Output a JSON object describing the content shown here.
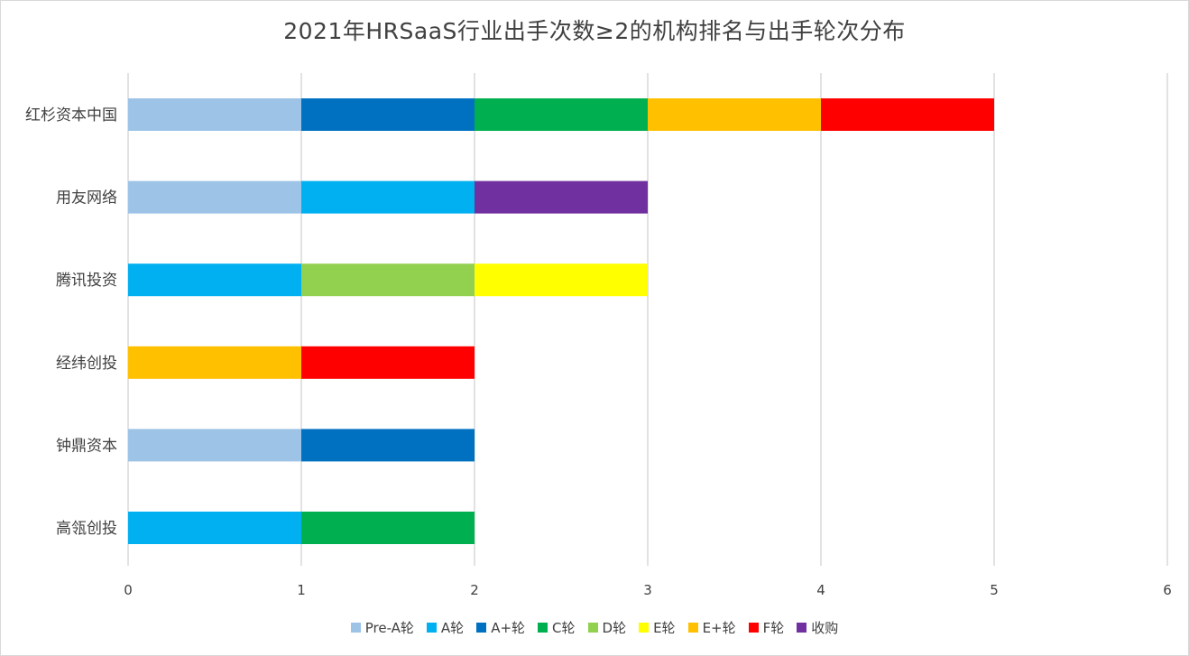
{
  "chart_data": {
    "type": "bar",
    "orientation": "horizontal",
    "stacked": true,
    "title": "2021年HRSaaS行业出手次数≥2的机构排名与出手轮次分布",
    "xlabel": "",
    "ylabel": "",
    "xlim": [
      0,
      6
    ],
    "xticks": [
      "0",
      "1",
      "2",
      "3",
      "4",
      "5",
      "6"
    ],
    "grid": "vertical",
    "legend_position": "bottom",
    "categories": [
      "红杉资本中国",
      "用友网络",
      "腾讯投资",
      "经纬创投",
      "钟鼎资本",
      "高瓴创投"
    ],
    "series": [
      {
        "name": "Pre-A轮",
        "color": "#9dc3e6",
        "values": [
          1,
          1,
          0,
          0,
          1,
          0
        ]
      },
      {
        "name": "A轮",
        "color": "#00b0f0",
        "values": [
          0,
          1,
          1,
          0,
          0,
          1
        ]
      },
      {
        "name": "A+轮",
        "color": "#0070c0",
        "values": [
          1,
          0,
          0,
          0,
          1,
          0
        ]
      },
      {
        "name": "C轮",
        "color": "#00b050",
        "values": [
          1,
          0,
          0,
          0,
          0,
          1
        ]
      },
      {
        "name": "D轮",
        "color": "#92d050",
        "values": [
          0,
          0,
          1,
          0,
          0,
          0
        ]
      },
      {
        "name": "E轮",
        "color": "#ffff00",
        "values": [
          0,
          0,
          1,
          0,
          0,
          0
        ]
      },
      {
        "name": "E+轮",
        "color": "#ffc000",
        "values": [
          1,
          0,
          0,
          1,
          0,
          0
        ]
      },
      {
        "name": "F轮",
        "color": "#ff0000",
        "values": [
          1,
          0,
          0,
          1,
          0,
          0
        ]
      },
      {
        "name": "收购",
        "color": "#7030a0",
        "values": [
          0,
          1,
          0,
          0,
          0,
          0
        ]
      }
    ],
    "gridline_color": "#d9d9d9",
    "text_color": "#404040"
  }
}
